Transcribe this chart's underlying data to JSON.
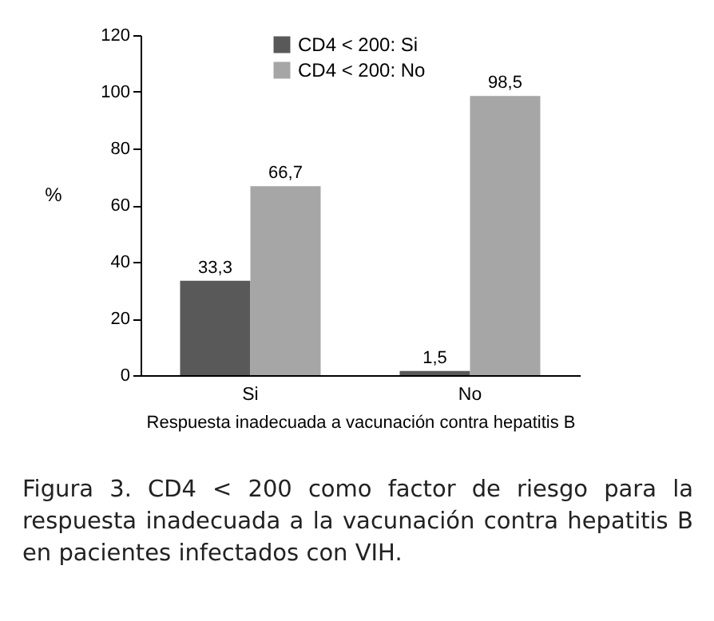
{
  "chart_data": {
    "type": "bar",
    "xlabel": "Respuesta inadecuada a vacunación contra hepatitis B",
    "ylabel": "%",
    "categories": [
      "Si",
      "No"
    ],
    "series": [
      {
        "name": "CD4 < 200: Si",
        "color": "#595959",
        "values": [
          33.3,
          1.5
        ],
        "value_labels": [
          "33,3",
          "1,5"
        ]
      },
      {
        "name": "CD4 < 200: No",
        "color": "#a6a6a6",
        "values": [
          66.7,
          98.5
        ],
        "value_labels": [
          "66,7",
          "98,5"
        ]
      }
    ],
    "ylim": [
      0,
      120
    ],
    "yticks": [
      0,
      20,
      40,
      60,
      80,
      100,
      120
    ],
    "grid": false,
    "legend": "top",
    "annotations": [
      "Figura 3. CD4 < 200 como factor de riesgo para la respuesta inadecuada a la vacunación contra hepatitis B en pacientes infectados con VIH."
    ]
  }
}
